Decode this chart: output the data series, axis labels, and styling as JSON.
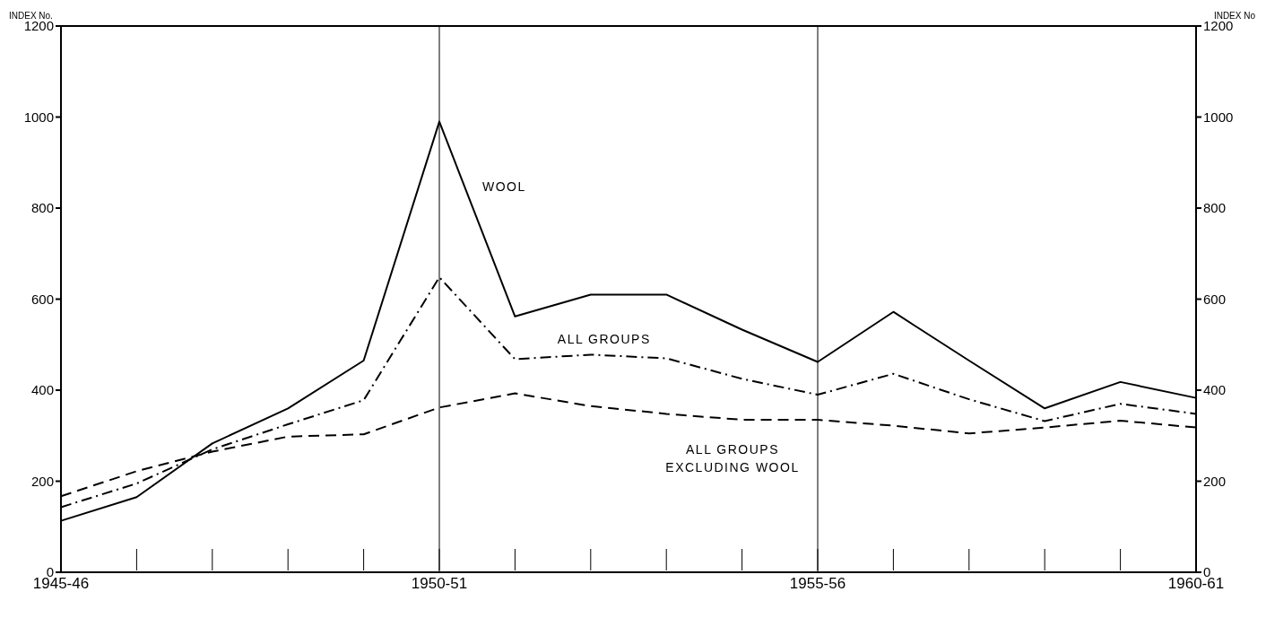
{
  "chart_data": {
    "type": "line",
    "ylabel": "INDEX No.",
    "y2label": "INDEX No",
    "categories": [
      "1945-46",
      null,
      null,
      null,
      null,
      "1950-51",
      null,
      null,
      null,
      null,
      "1955-56",
      null,
      null,
      null,
      null,
      "1960-61"
    ],
    "series": [
      {
        "name": "WOOL",
        "color": "#000000",
        "line_style": "solid",
        "values": [
          113,
          165,
          283,
          360,
          465,
          990,
          562,
          610,
          610,
          533,
          462,
          572,
          465,
          360,
          418,
          383
        ]
      },
      {
        "name": "ALL GROUPS",
        "color": "#000000",
        "line_style": "dashdot",
        "values": [
          143,
          195,
          270,
          325,
          378,
          648,
          468,
          478,
          470,
          425,
          390,
          436,
          380,
          332,
          370,
          348
        ]
      },
      {
        "name": "ALL GROUPS EXCLUDING WOOL",
        "color": "#000000",
        "line_style": "dashed",
        "values": [
          167,
          222,
          265,
          298,
          303,
          362,
          393,
          365,
          348,
          335,
          335,
          322,
          305,
          318,
          333,
          318
        ]
      }
    ],
    "ylim": [
      0,
      1200
    ],
    "yticks": [
      0,
      200,
      400,
      600,
      800,
      1000,
      1200
    ],
    "y2lim": [
      0,
      1200
    ],
    "y2ticks": [
      0,
      200,
      400,
      600,
      800,
      1000,
      1200
    ],
    "ref_lines": [
      {
        "axis": "x",
        "value": "1950-51",
        "color": "#000000"
      },
      {
        "axis": "x",
        "value": "1955-56",
        "color": "#000000"
      }
    ],
    "grid": false,
    "legend": false,
    "marker": "none"
  }
}
